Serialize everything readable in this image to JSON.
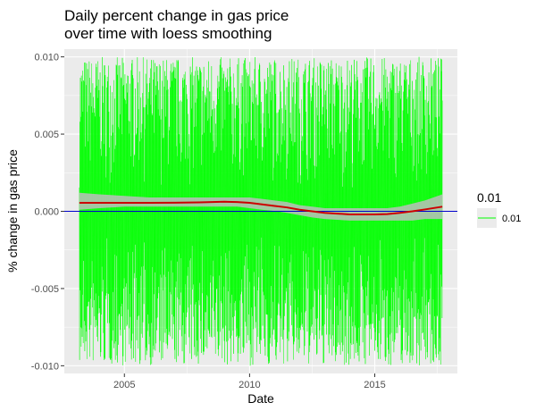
{
  "chart_data": {
    "type": "line",
    "title_lines": [
      "Daily percent change in gas price",
      "over time with loess smoothing"
    ],
    "xlabel": "Date",
    "ylabel": "% change in gas price",
    "xlim": [
      2002.6,
      2018.3
    ],
    "ylim": [
      -0.0105,
      0.0105
    ],
    "x_ticks": [
      2005,
      2010,
      2015
    ],
    "x_tick_labels": [
      "2005",
      "2010",
      "2015"
    ],
    "y_ticks": [
      -0.01,
      -0.005,
      0,
      0.005,
      0.01
    ],
    "y_tick_labels": [
      "-0.010",
      "-0.005",
      "0.000",
      "0.005",
      "0.010"
    ],
    "hline": {
      "y": 0,
      "color": "#0000cd"
    },
    "daily_series": {
      "name": "0.01",
      "color": "#00ff00",
      "x_start": 2003.2,
      "x_end": 2017.7,
      "y_min": -0.01,
      "y_max": 0.01,
      "description_values": "dense daily changes within ±0.010"
    },
    "loess_fit": {
      "color": "#cc0000",
      "band_color": "#bdbdbd",
      "x": [
        2003.2,
        2004,
        2005,
        2006,
        2007,
        2008,
        2008.5,
        2009,
        2009.5,
        2010,
        2010.5,
        2011,
        2011.5,
        2012,
        2012.5,
        2013,
        2013.5,
        2014,
        2014.5,
        2015,
        2015.5,
        2016,
        2016.5,
        2017,
        2017.7
      ],
      "y": [
        0.00055,
        0.00055,
        0.00055,
        0.00055,
        0.00056,
        0.00058,
        0.0006,
        0.00062,
        0.0006,
        0.00055,
        0.00045,
        0.00035,
        0.00025,
        0.0001,
        0.0,
        -0.0001,
        -0.00015,
        -0.0002,
        -0.0002,
        -0.0002,
        -0.00018,
        -0.0001,
        0.0,
        0.00012,
        0.0003
      ],
      "lower": [
        0.0001,
        0.0002,
        0.0003,
        0.0003,
        0.0003,
        0.0003,
        0.0003,
        0.0003,
        0.0003,
        0.0002,
        0.0001,
        2e-05,
        -0.0001,
        -0.00025,
        -0.0004,
        -0.0005,
        -0.00055,
        -0.0006,
        -0.0006,
        -0.0006,
        -0.0006,
        -0.0006,
        -0.0006,
        -0.0005,
        -0.0005
      ],
      "upper": [
        0.0012,
        0.0011,
        0.001,
        0.0009,
        0.0009,
        0.0009,
        0.0009,
        0.0009,
        0.0009,
        0.0009,
        0.0008,
        0.0007,
        0.0006,
        0.0004,
        0.0003,
        0.0002,
        0.0002,
        0.0002,
        0.0002,
        0.0002,
        0.0002,
        0.0003,
        0.0005,
        0.0007,
        0.0011
      ]
    },
    "legend": {
      "title": "0.01",
      "entries": [
        {
          "label": "0.01",
          "color": "#00ff00"
        }
      ],
      "position": "right"
    },
    "panel_background": "#ebebeb",
    "grid": true
  }
}
